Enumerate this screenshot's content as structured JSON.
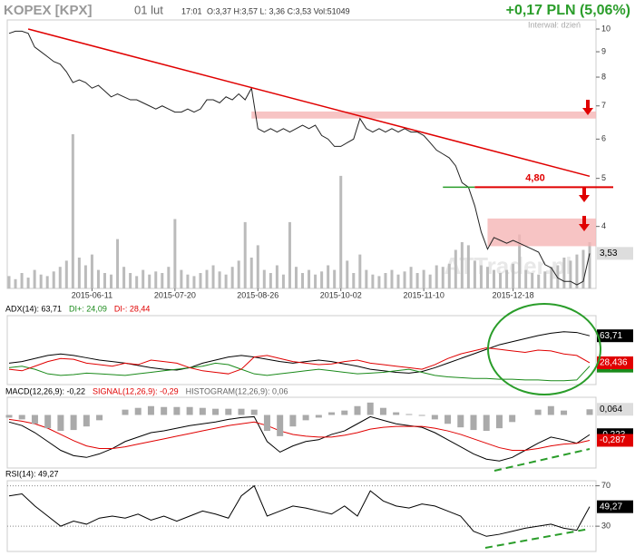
{
  "header": {
    "ticker": "KOPEX [KPX]",
    "date": "01 lut",
    "time": "17:01",
    "ohlc": "O:3,37 H:3,57 L: 3,36 C:3,53 Vol:51049",
    "change": "+0,17 PLN (5,06%)",
    "interval": "Interwał: dzień"
  },
  "chart_data": [
    {
      "type": "line",
      "log_scale": true,
      "color": "#222222",
      "watermark": "ATTrader.pl",
      "categories": [
        null,
        null,
        null,
        null,
        null,
        null,
        null,
        null,
        null,
        null,
        null,
        null,
        null,
        "2015-06-11",
        null,
        null,
        null,
        null,
        null,
        null,
        null,
        null,
        null,
        null,
        null,
        null,
        "2015-07-20",
        null,
        null,
        null,
        null,
        null,
        null,
        null,
        null,
        null,
        null,
        null,
        null,
        "2015-08-26",
        null,
        null,
        null,
        null,
        null,
        null,
        null,
        null,
        null,
        null,
        null,
        null,
        "2015-10-02",
        null,
        null,
        null,
        null,
        null,
        null,
        null,
        null,
        null,
        null,
        null,
        null,
        "2015-11-10",
        null,
        null,
        null,
        null,
        null,
        null,
        null,
        null,
        null,
        null,
        null,
        null,
        null,
        "2015-12-18",
        null,
        null,
        null,
        null,
        null,
        null,
        null,
        null,
        null,
        null,
        null,
        null
      ],
      "values": [
        9.8,
        9.9,
        9.9,
        9.8,
        9.2,
        9.0,
        8.8,
        8.6,
        8.5,
        8.2,
        7.8,
        7.9,
        7.8,
        7.6,
        7.7,
        7.5,
        7.3,
        7.4,
        7.3,
        7.2,
        7.2,
        7.1,
        7.0,
        6.9,
        7.0,
        6.9,
        6.8,
        6.8,
        6.9,
        6.8,
        6.9,
        7.2,
        7.2,
        7.1,
        7.3,
        7.2,
        7.4,
        7.2,
        7.6,
        6.3,
        6.2,
        6.3,
        6.2,
        6.3,
        6.2,
        6.3,
        6.4,
        6.3,
        6.4,
        6.1,
        6.0,
        5.8,
        5.8,
        5.9,
        6.0,
        6.6,
        6.3,
        6.2,
        6.3,
        6.2,
        6.3,
        6.2,
        6.3,
        6.2,
        6.2,
        6.1,
        5.9,
        5.7,
        5.6,
        5.5,
        5.3,
        4.9,
        4.8,
        4.4,
        3.9,
        3.6,
        3.8,
        3.75,
        3.7,
        3.75,
        3.7,
        3.65,
        3.6,
        3.55,
        3.35,
        3.3,
        3.15,
        3.1,
        3.1,
        3.05,
        3.1,
        3.53
      ],
      "value_labels": {
        "91": "3,53"
      },
      "volume": {
        "color": "#bbbbbb",
        "values": [
          8,
          6,
          10,
          7,
          12,
          9,
          8,
          11,
          14,
          18,
          100,
          20,
          15,
          22,
          12,
          10,
          9,
          32,
          14,
          10,
          8,
          12,
          9,
          11,
          10,
          14,
          45,
          12,
          9,
          8,
          10,
          12,
          15,
          11,
          9,
          14,
          18,
          43,
          20,
          28,
          12,
          10,
          15,
          9,
          43,
          14,
          10,
          12,
          9,
          11,
          15,
          12,
          73,
          18,
          10,
          22,
          12,
          9,
          8,
          10,
          12,
          9,
          11,
          14,
          10,
          12,
          9,
          15,
          14,
          16,
          25,
          30,
          28,
          18,
          15,
          14,
          12,
          10,
          12,
          16,
          35,
          12,
          10,
          9,
          11,
          14,
          15,
          20,
          18,
          22,
          25,
          30
        ]
      },
      "ylim": [
        3.0,
        10.3
      ],
      "yticks": [
        4,
        5,
        6,
        7,
        8,
        9,
        10
      ],
      "trendline": {
        "from": [
          3,
          10
        ],
        "to": [
          91,
          5.05
        ],
        "color": "#e00000"
      },
      "level": {
        "value": 4.8,
        "label": "4,80",
        "from": 73,
        "color": "#e00000",
        "support_from": 68,
        "support_color": "#2a9d2a"
      },
      "zones": [
        {
          "from": 38,
          "low": 6.6,
          "high": 6.82,
          "color": "#f5b5b5"
        },
        {
          "from": 75,
          "low": 3.65,
          "high": 4.15,
          "color": "#f5b5b5"
        }
      ]
    },
    {
      "type": "line",
      "ylim": [
        0,
        90
      ],
      "series": [
        {
          "name": "ADX(14): 63,71",
          "color": "#000000",
          "values": [
            28,
            30,
            34,
            38,
            40,
            38,
            35,
            32,
            30,
            28,
            25,
            22,
            20,
            19,
            22,
            28,
            32,
            36,
            38,
            36,
            33,
            30,
            28,
            30,
            32,
            30,
            27,
            24,
            20,
            18,
            16,
            15,
            17,
            22,
            28,
            34,
            40,
            46,
            52,
            56,
            60,
            64,
            67,
            69,
            68,
            63.71
          ],
          "value_labels": {
            "45": "63,71"
          }
        },
        {
          "name": "DI+: 24,09",
          "color": "#1a8a1a",
          "values": [
            22,
            24,
            20,
            14,
            12,
            13,
            15,
            14,
            13,
            12,
            14,
            16,
            18,
            20,
            22,
            24,
            28,
            26,
            20,
            14,
            12,
            14,
            16,
            18,
            20,
            18,
            16,
            14,
            15,
            16,
            18,
            20,
            16,
            12,
            10,
            9,
            8,
            8,
            7,
            7,
            6,
            6,
            5,
            5,
            6,
            24.09
          ],
          "value_labels": {
            "45": "24,09"
          }
        },
        {
          "name": "DI-: 28,44",
          "color": "#e00000",
          "values": [
            20,
            18,
            24,
            30,
            34,
            33,
            28,
            26,
            24,
            28,
            26,
            32,
            30,
            28,
            22,
            18,
            16,
            14,
            20,
            36,
            38,
            34,
            30,
            28,
            26,
            27,
            30,
            32,
            28,
            26,
            24,
            22,
            20,
            26,
            34,
            40,
            44,
            48,
            46,
            44,
            42,
            45,
            44,
            40,
            38,
            28.436
          ],
          "value_labels": {
            "45": "28,436"
          }
        }
      ]
    },
    {
      "type": "line",
      "ylim": [
        -0.6,
        0.2
      ],
      "series": [
        {
          "name": "MACD(12,26,9): -0,22",
          "color": "#000000",
          "values": [
            -0.08,
            -0.12,
            -0.2,
            -0.3,
            -0.4,
            -0.46,
            -0.48,
            -0.44,
            -0.38,
            -0.3,
            -0.25,
            -0.2,
            -0.18,
            -0.15,
            -0.12,
            -0.1,
            -0.08,
            -0.05,
            -0.03,
            -0.02,
            -0.3,
            -0.42,
            -0.35,
            -0.3,
            -0.28,
            -0.22,
            -0.18,
            -0.1,
            -0.02,
            -0.06,
            -0.1,
            -0.12,
            -0.14,
            -0.2,
            -0.28,
            -0.36,
            -0.44,
            -0.5,
            -0.52,
            -0.48,
            -0.4,
            -0.32,
            -0.25,
            -0.28,
            -0.32,
            -0.223
          ],
          "value_labels": {
            "45": "-0,223"
          }
        },
        {
          "name": "SIGNAL(12,26,9): -0,29",
          "color": "#e00000",
          "values": [
            -0.05,
            -0.07,
            -0.1,
            -0.15,
            -0.22,
            -0.29,
            -0.35,
            -0.38,
            -0.38,
            -0.36,
            -0.33,
            -0.3,
            -0.27,
            -0.24,
            -0.21,
            -0.18,
            -0.15,
            -0.12,
            -0.1,
            -0.08,
            -0.12,
            -0.18,
            -0.22,
            -0.24,
            -0.25,
            -0.25,
            -0.23,
            -0.2,
            -0.16,
            -0.14,
            -0.13,
            -0.13,
            -0.13,
            -0.15,
            -0.18,
            -0.22,
            -0.27,
            -0.32,
            -0.37,
            -0.4,
            -0.4,
            -0.38,
            -0.35,
            -0.33,
            -0.32,
            -0.287
          ],
          "value_labels": {
            "45": "-0,287"
          }
        },
        {
          "name": "HISTOGRAM(12,26,9): 0,06",
          "color": "#aaaaaa",
          "type": "bar",
          "values": [
            -0.03,
            -0.05,
            -0.1,
            -0.15,
            -0.18,
            -0.17,
            -0.13,
            -0.06,
            0,
            0.06,
            0.08,
            0.1,
            0.09,
            0.09,
            0.09,
            0.08,
            0.07,
            0.07,
            0.07,
            0.06,
            -0.18,
            -0.24,
            -0.13,
            -0.06,
            -0.03,
            0.03,
            0.05,
            0.1,
            0.14,
            0.08,
            0.03,
            0.01,
            -0.01,
            -0.05,
            -0.1,
            -0.14,
            -0.17,
            -0.18,
            -0.15,
            -0.08,
            0,
            0.06,
            0.1,
            0.05,
            0,
            0.064
          ],
          "value_labels": {
            "45": "0,064"
          }
        }
      ]
    },
    {
      "type": "line",
      "ylim": [
        5,
        75
      ],
      "yticks": [
        70,
        30
      ],
      "grid": true,
      "series": [
        {
          "name": "RSI(14): 49,27",
          "color": "#000000",
          "values": [
            60,
            62,
            50,
            40,
            30,
            35,
            32,
            38,
            40,
            38,
            42,
            36,
            40,
            35,
            40,
            45,
            42,
            38,
            60,
            70,
            40,
            45,
            50,
            48,
            45,
            42,
            50,
            40,
            65,
            55,
            50,
            48,
            52,
            50,
            45,
            40,
            25,
            20,
            22,
            25,
            28,
            30,
            32,
            28,
            26,
            49.27
          ],
          "value_labels": {
            "45": "49,27"
          }
        }
      ]
    }
  ]
}
